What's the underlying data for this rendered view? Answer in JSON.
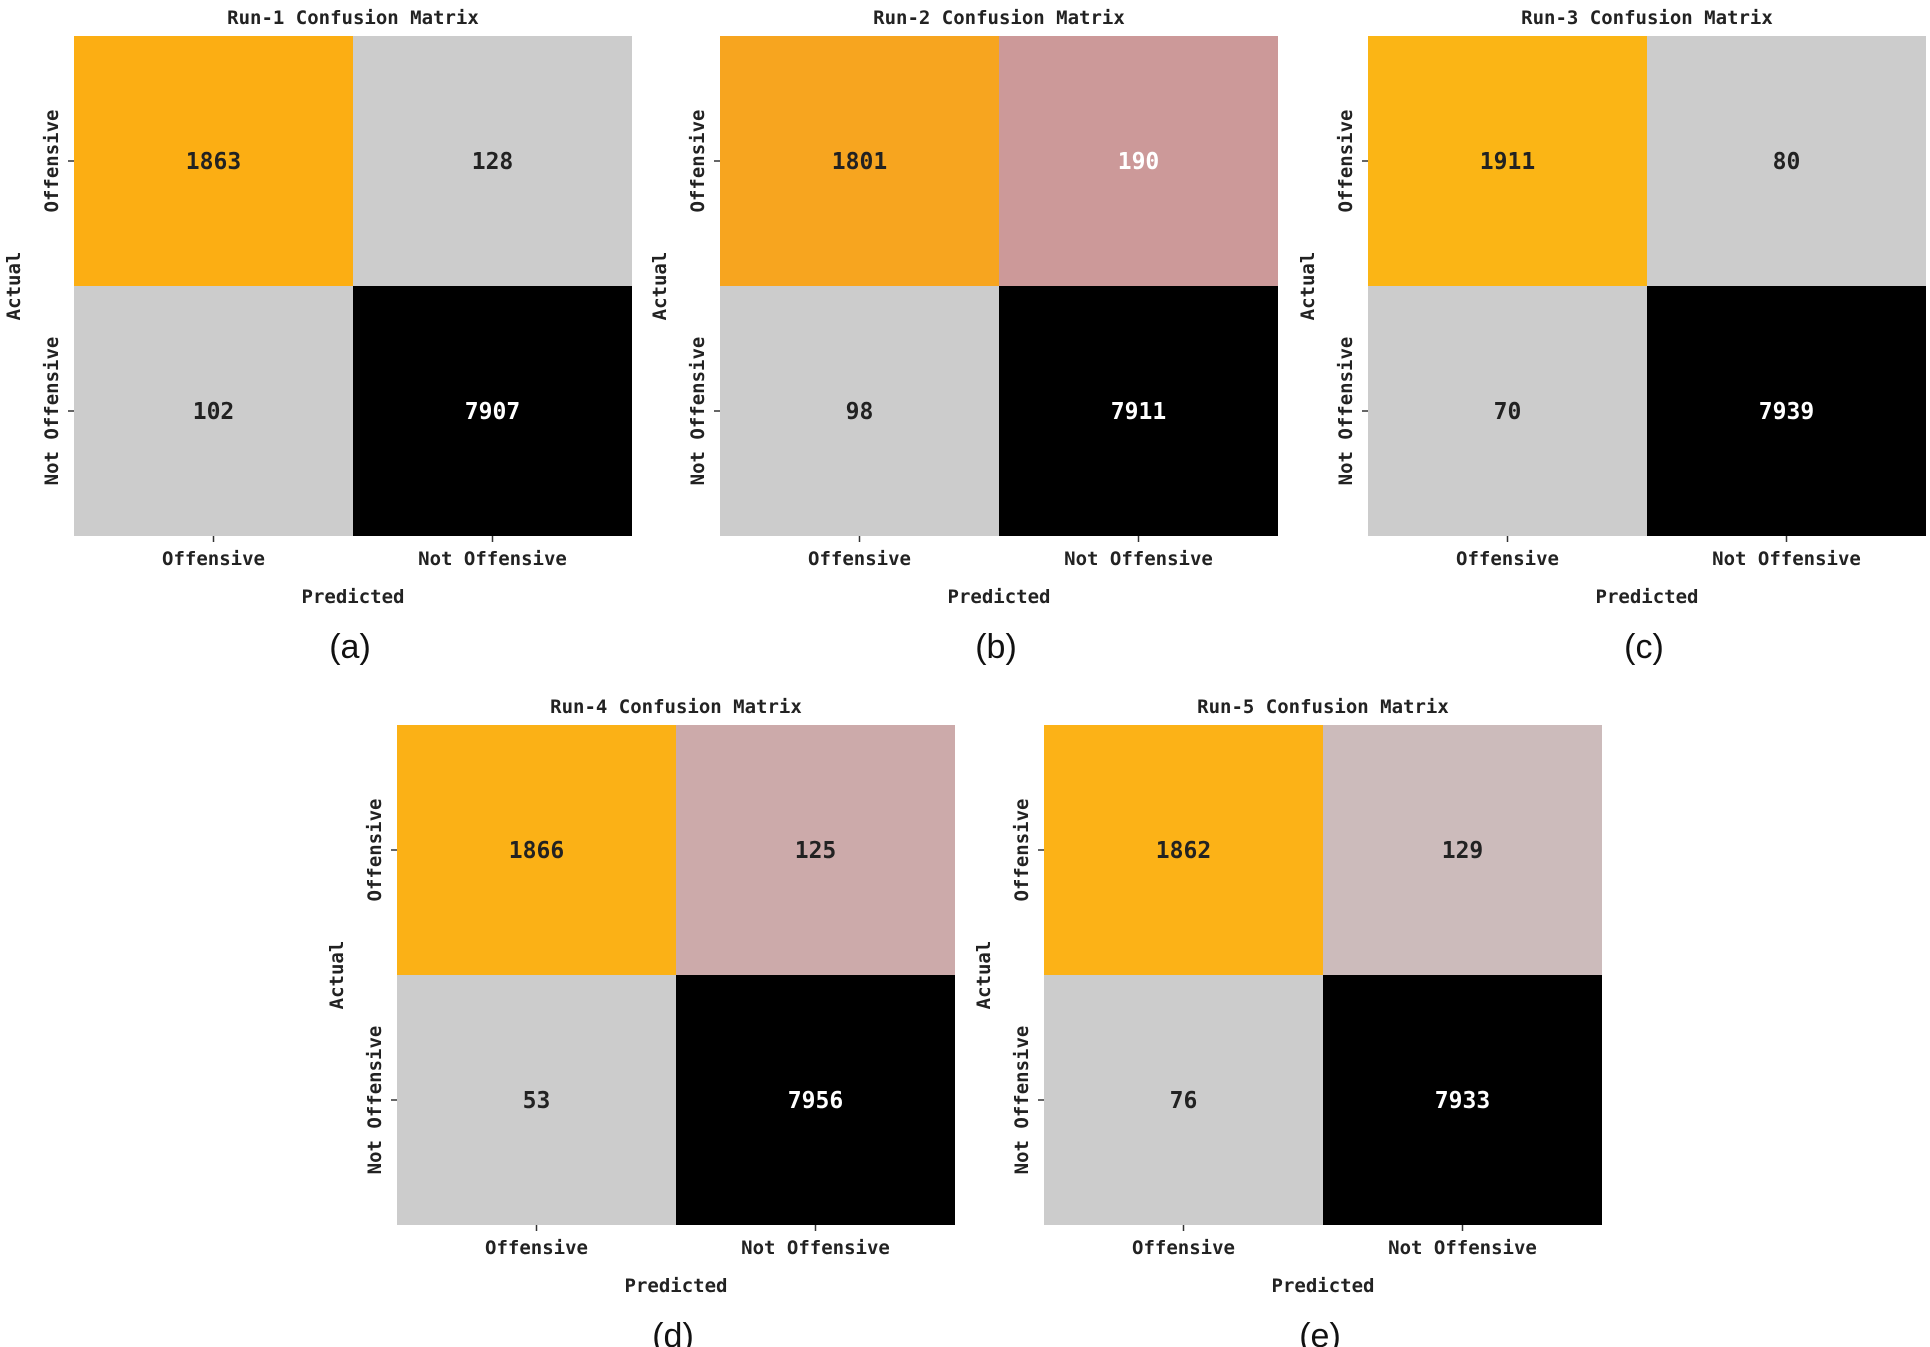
{
  "figure": {
    "panels": [
      {
        "caption": "(a)",
        "background_color": "#ffffff"
      },
      {
        "caption": "(b)",
        "background_color": "#ffffff"
      },
      {
        "caption": "(c)",
        "background_color": "#ffffff"
      },
      {
        "caption": "(d)",
        "background_color": "#ffffff"
      },
      {
        "caption": "(e)",
        "background_color": "#ffffff"
      }
    ]
  },
  "chart_data": [
    {
      "type": "heatmap",
      "title": "Run-1 Confusion Matrix",
      "xlabel": "Predicted",
      "ylabel": "Actual",
      "x_categories": [
        "Offensive",
        "Not Offensive"
      ],
      "y_categories": [
        "Offensive",
        "Not Offensive"
      ],
      "values": [
        [
          1863,
          128
        ],
        [
          102,
          7907
        ]
      ],
      "cell_colors": [
        [
          "#fcae13",
          "#cccccc"
        ],
        [
          "#cccccc",
          "#000000"
        ]
      ],
      "text_colors": [
        [
          "#222222",
          "#222222"
        ],
        [
          "#222222",
          "#ffffff"
        ]
      ]
    },
    {
      "type": "heatmap",
      "title": "Run-2 Confusion Matrix",
      "xlabel": "Predicted",
      "ylabel": "Actual",
      "x_categories": [
        "Offensive",
        "Not Offensive"
      ],
      "y_categories": [
        "Offensive",
        "Not Offensive"
      ],
      "values": [
        [
          1801,
          190
        ],
        [
          98,
          7911
        ]
      ],
      "cell_colors": [
        [
          "#f7a51f",
          "#cc9999"
        ],
        [
          "#cccccc",
          "#000000"
        ]
      ],
      "text_colors": [
        [
          "#222222",
          "#ffffff"
        ],
        [
          "#222222",
          "#ffffff"
        ]
      ]
    },
    {
      "type": "heatmap",
      "title": "Run-3 Confusion Matrix",
      "xlabel": "Predicted",
      "ylabel": "Actual",
      "x_categories": [
        "Offensive",
        "Not Offensive"
      ],
      "y_categories": [
        "Offensive",
        "Not Offensive"
      ],
      "values": [
        [
          1911,
          80
        ],
        [
          70,
          7939
        ]
      ],
      "cell_colors": [
        [
          "#fbb515",
          "#cccccc"
        ],
        [
          "#cccccc",
          "#000000"
        ]
      ],
      "text_colors": [
        [
          "#222222",
          "#222222"
        ],
        [
          "#222222",
          "#ffffff"
        ]
      ]
    },
    {
      "type": "heatmap",
      "title": "Run-4 Confusion Matrix",
      "xlabel": "Predicted",
      "ylabel": "Actual",
      "x_categories": [
        "Offensive",
        "Not Offensive"
      ],
      "y_categories": [
        "Offensive",
        "Not Offensive"
      ],
      "values": [
        [
          1866,
          125
        ],
        [
          53,
          7956
        ]
      ],
      "cell_colors": [
        [
          "#fbb116",
          "#ccaaaa"
        ],
        [
          "#cccccc",
          "#000000"
        ]
      ],
      "text_colors": [
        [
          "#222222",
          "#222222"
        ],
        [
          "#222222",
          "#ffffff"
        ]
      ]
    },
    {
      "type": "heatmap",
      "title": "Run-5 Confusion Matrix",
      "xlabel": "Predicted",
      "ylabel": "Actual",
      "x_categories": [
        "Offensive",
        "Not Offensive"
      ],
      "y_categories": [
        "Offensive",
        "Not Offensive"
      ],
      "values": [
        [
          1862,
          129
        ],
        [
          76,
          7933
        ]
      ],
      "cell_colors": [
        [
          "#fcb217",
          "#ccbbbb"
        ],
        [
          "#cccccc",
          "#000000"
        ]
      ],
      "text_colors": [
        [
          "#222222",
          "#222222"
        ],
        [
          "#222222",
          "#ffffff"
        ]
      ]
    }
  ]
}
